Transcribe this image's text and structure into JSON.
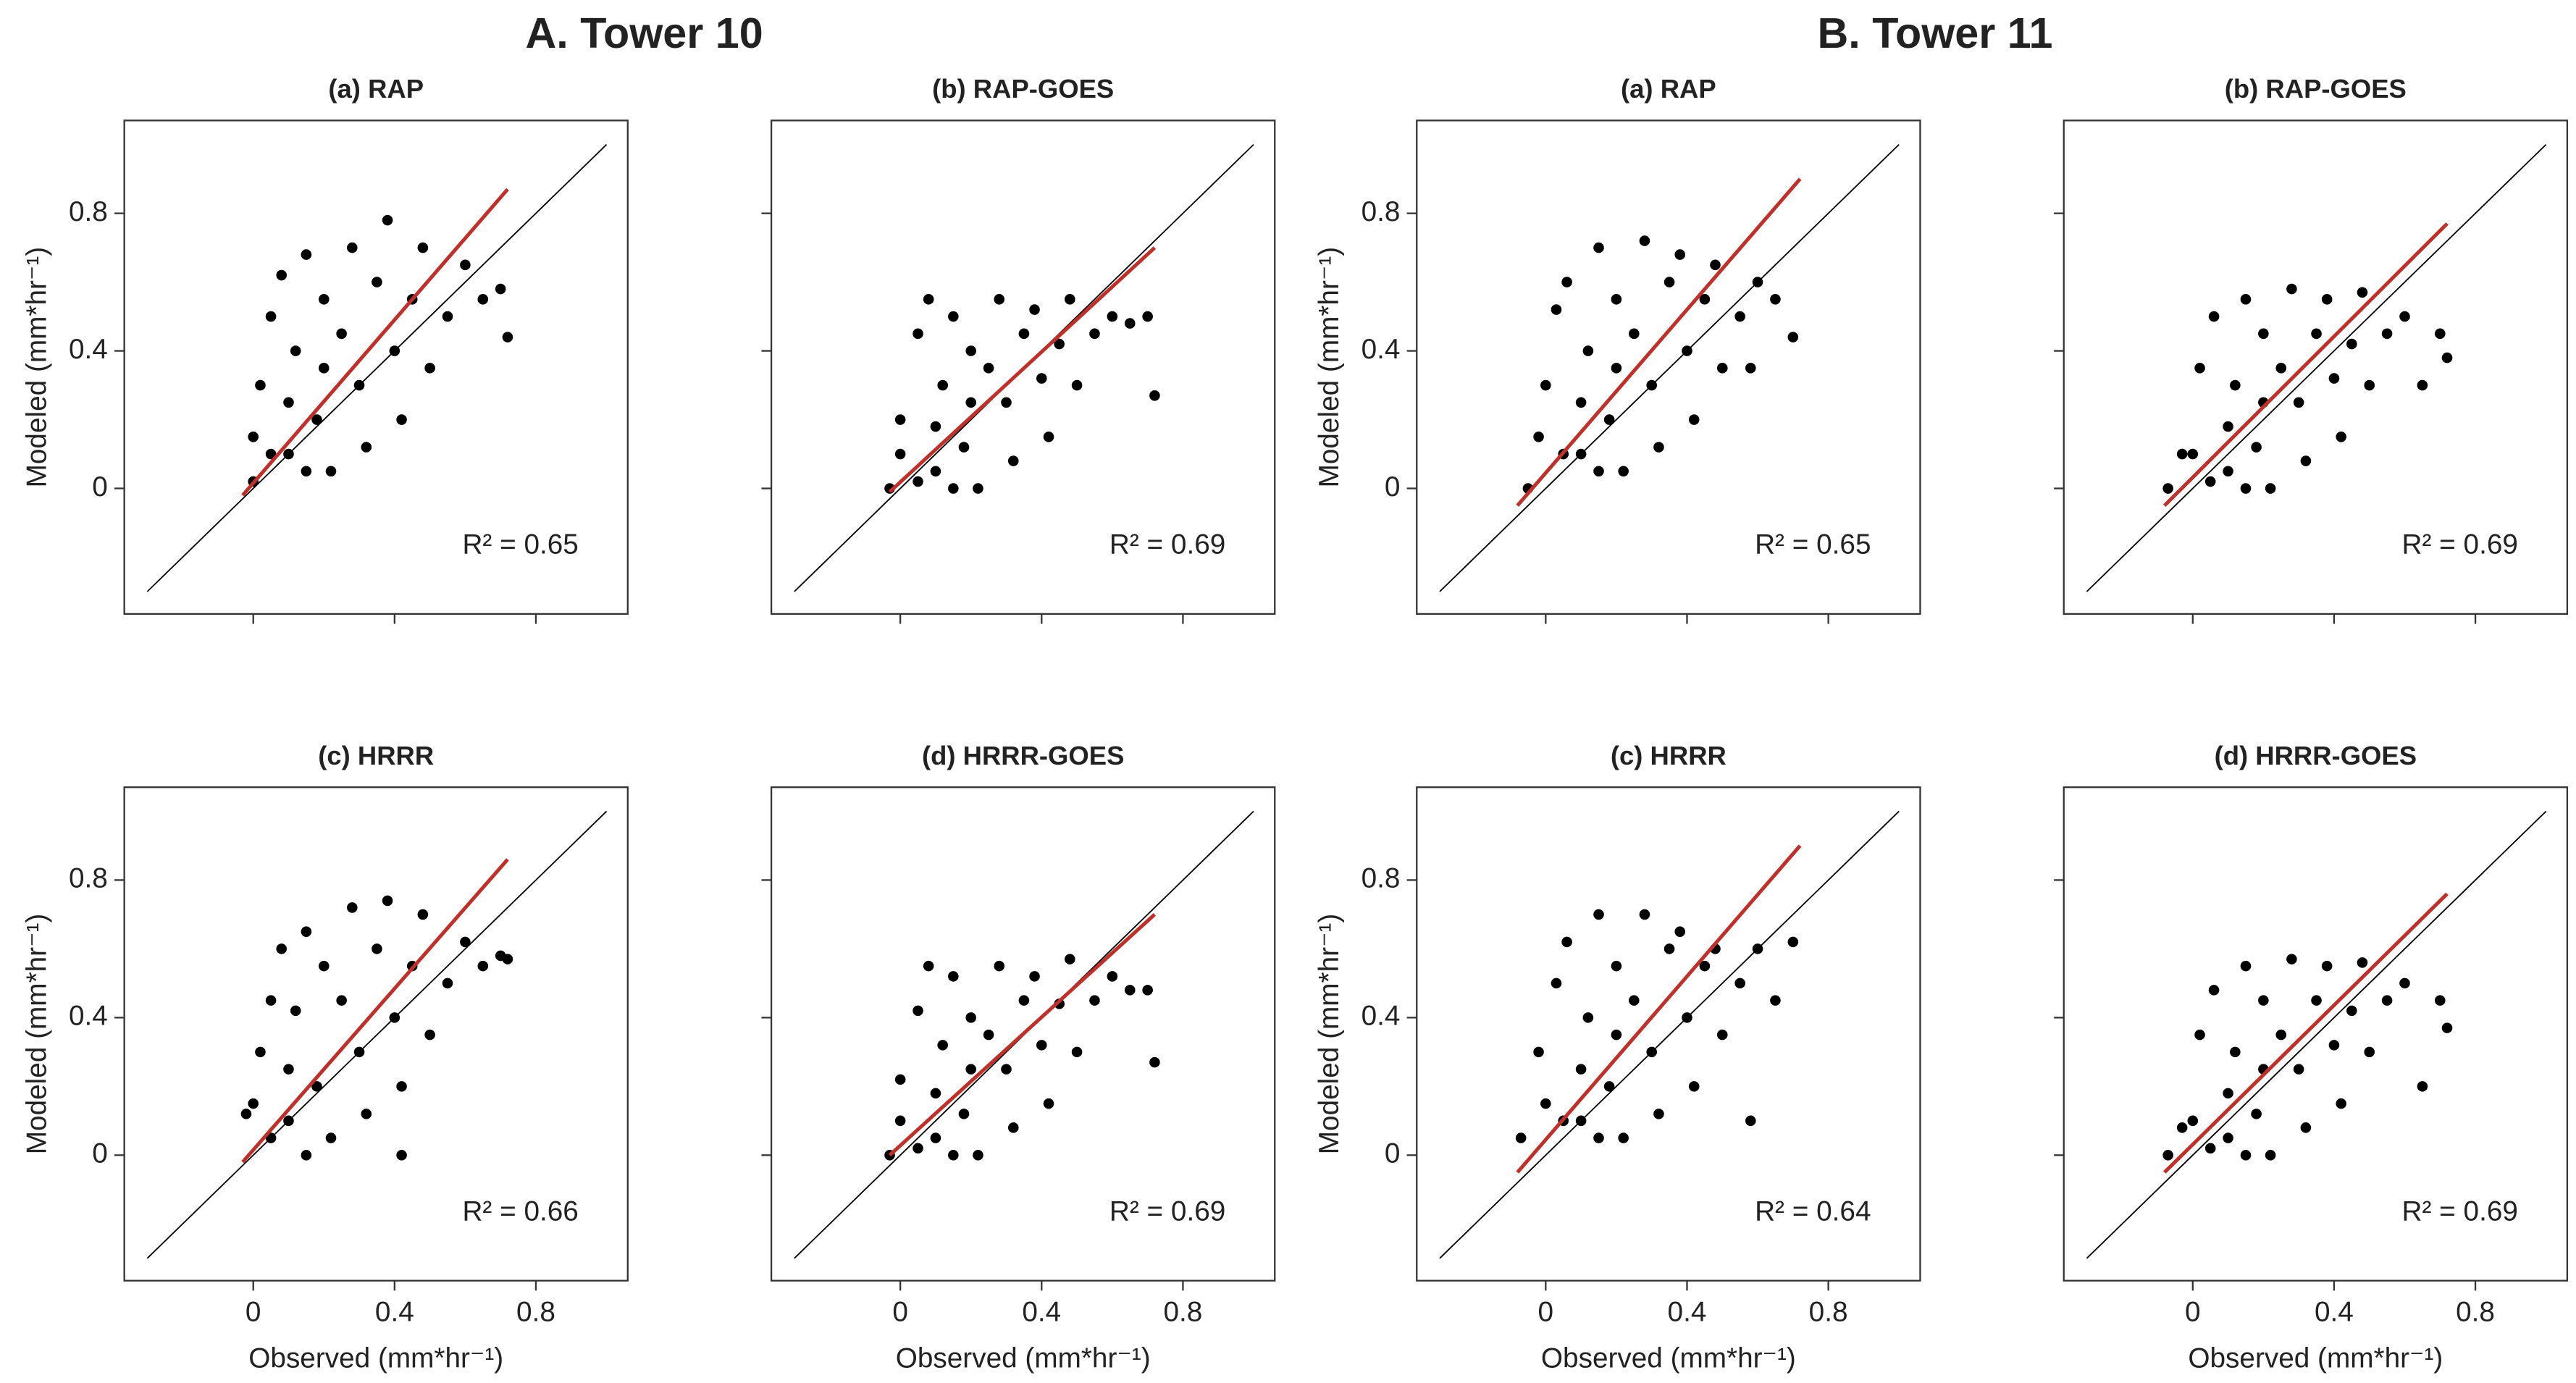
{
  "group_titles": [
    "A. Tower 10",
    "B. Tower 11"
  ],
  "chart_data": [
    {
      "type": "scatter",
      "title": "(a) RAP",
      "ylabel": "Modeled (mm*hr⁻¹)",
      "show_xtick_labels": false,
      "show_ytick_labels": true,
      "annotation": "R² = 0.65",
      "xlim": [
        -0.365,
        1.06
      ],
      "ylim": [
        -0.365,
        1.07
      ],
      "xticks": [
        0.0,
        0.4,
        0.8
      ],
      "yticks": [
        0.0,
        0.4,
        0.8
      ],
      "color": "#000000",
      "x": [
        0.0,
        0.02,
        0.05,
        0.08,
        0.1,
        0.12,
        0.15,
        0.18,
        0.2,
        0.22,
        0.25,
        0.28,
        0.3,
        0.32,
        0.35,
        0.38,
        0.4,
        0.42,
        0.45,
        0.48,
        0.5,
        0.55,
        0.6,
        0.65,
        0.7,
        0.0,
        0.05,
        0.1,
        0.15,
        0.2,
        0.72
      ],
      "y": [
        0.02,
        0.3,
        0.5,
        0.62,
        0.1,
        0.4,
        0.68,
        0.2,
        0.55,
        0.05,
        0.45,
        0.7,
        0.3,
        0.12,
        0.6,
        0.78,
        0.4,
        0.2,
        0.55,
        0.7,
        0.35,
        0.5,
        0.65,
        0.55,
        0.58,
        0.15,
        0.1,
        0.25,
        0.05,
        0.35,
        0.44
      ],
      "reference_line": {
        "x": [
          -0.3,
          1.0
        ],
        "y": [
          -0.3,
          1.0
        ],
        "color": "#000000"
      },
      "fit_line": {
        "x": [
          -0.03,
          0.72
        ],
        "y": [
          -0.02,
          0.87
        ],
        "color": "#c0302b"
      }
    },
    {
      "type": "scatter",
      "title": "(b) RAP-GOES",
      "show_xtick_labels": false,
      "show_ytick_labels": false,
      "annotation": "R² = 0.69",
      "xlim": [
        -0.365,
        1.06
      ],
      "ylim": [
        -0.365,
        1.07
      ],
      "xticks": [
        0.0,
        0.4,
        0.8
      ],
      "yticks": [
        0.0,
        0.4,
        0.8
      ],
      "color": "#000000",
      "x": [
        -0.03,
        0.0,
        0.05,
        0.08,
        0.1,
        0.12,
        0.15,
        0.18,
        0.2,
        0.22,
        0.25,
        0.28,
        0.3,
        0.32,
        0.35,
        0.38,
        0.4,
        0.42,
        0.45,
        0.48,
        0.5,
        0.55,
        0.6,
        0.65,
        0.7,
        0.0,
        0.05,
        0.1,
        0.15,
        0.2,
        0.72
      ],
      "y": [
        0.0,
        0.2,
        0.45,
        0.55,
        0.05,
        0.3,
        0.5,
        0.12,
        0.4,
        0.0,
        0.35,
        0.55,
        0.25,
        0.08,
        0.45,
        0.52,
        0.32,
        0.15,
        0.42,
        0.55,
        0.3,
        0.45,
        0.5,
        0.48,
        0.5,
        0.1,
        0.02,
        0.18,
        0.0,
        0.25,
        0.27
      ],
      "reference_line": {
        "x": [
          -0.3,
          1.0
        ],
        "y": [
          -0.3,
          1.0
        ],
        "color": "#000000"
      },
      "fit_line": {
        "x": [
          -0.03,
          0.72
        ],
        "y": [
          -0.01,
          0.7
        ],
        "color": "#c0302b"
      }
    },
    {
      "type": "scatter",
      "title": "(c) HRRR",
      "xlabel": "Observed (mm*hr⁻¹)",
      "ylabel": "Modeled (mm*hr⁻¹)",
      "show_xtick_labels": true,
      "show_ytick_labels": true,
      "annotation": "R² = 0.66",
      "xlim": [
        -0.365,
        1.06
      ],
      "ylim": [
        -0.365,
        1.07
      ],
      "xticks": [
        0.0,
        0.4,
        0.8
      ],
      "yticks": [
        0.0,
        0.4,
        0.8
      ],
      "color": "#000000",
      "x": [
        -0.02,
        0.02,
        0.05,
        0.08,
        0.1,
        0.12,
        0.15,
        0.18,
        0.2,
        0.22,
        0.25,
        0.28,
        0.3,
        0.32,
        0.35,
        0.38,
        0.4,
        0.42,
        0.45,
        0.48,
        0.5,
        0.55,
        0.6,
        0.65,
        0.7,
        0.0,
        0.05,
        0.1,
        0.15,
        0.42,
        0.72
      ],
      "y": [
        0.12,
        0.3,
        0.45,
        0.6,
        0.1,
        0.42,
        0.65,
        0.2,
        0.55,
        0.05,
        0.45,
        0.72,
        0.3,
        0.12,
        0.6,
        0.74,
        0.4,
        0.2,
        0.55,
        0.7,
        0.35,
        0.5,
        0.62,
        0.55,
        0.58,
        0.15,
        0.05,
        0.25,
        0.0,
        0.0,
        0.57
      ],
      "reference_line": {
        "x": [
          -0.3,
          1.0
        ],
        "y": [
          -0.3,
          1.0
        ],
        "color": "#000000"
      },
      "fit_line": {
        "x": [
          -0.03,
          0.72
        ],
        "y": [
          -0.02,
          0.86
        ],
        "color": "#c0302b"
      }
    },
    {
      "type": "scatter",
      "title": "(d) HRRR-GOES",
      "xlabel": "Observed (mm*hr⁻¹)",
      "show_xtick_labels": true,
      "show_ytick_labels": false,
      "annotation": "R² = 0.69",
      "xlim": [
        -0.365,
        1.06
      ],
      "ylim": [
        -0.365,
        1.07
      ],
      "xticks": [
        0.0,
        0.4,
        0.8
      ],
      "yticks": [
        0.0,
        0.4,
        0.8
      ],
      "color": "#000000",
      "x": [
        -0.03,
        0.0,
        0.05,
        0.08,
        0.1,
        0.12,
        0.15,
        0.18,
        0.2,
        0.22,
        0.25,
        0.28,
        0.3,
        0.32,
        0.35,
        0.38,
        0.4,
        0.42,
        0.45,
        0.48,
        0.5,
        0.55,
        0.6,
        0.65,
        0.7,
        0.0,
        0.05,
        0.1,
        0.15,
        0.2,
        0.72
      ],
      "y": [
        0.0,
        0.22,
        0.42,
        0.55,
        0.05,
        0.32,
        0.52,
        0.12,
        0.4,
        0.0,
        0.35,
        0.55,
        0.25,
        0.08,
        0.45,
        0.52,
        0.32,
        0.15,
        0.44,
        0.57,
        0.3,
        0.45,
        0.52,
        0.48,
        0.48,
        0.1,
        0.02,
        0.18,
        0.0,
        0.25,
        0.27
      ],
      "reference_line": {
        "x": [
          -0.3,
          1.0
        ],
        "y": [
          -0.3,
          1.0
        ],
        "color": "#000000"
      },
      "fit_line": {
        "x": [
          -0.03,
          0.72
        ],
        "y": [
          0.0,
          0.7
        ],
        "color": "#c0302b"
      }
    },
    {
      "type": "scatter",
      "title": "(a) RAP",
      "ylabel": "Modeled (mm*hr⁻¹)",
      "show_xtick_labels": false,
      "show_ytick_labels": true,
      "annotation": "R² = 0.65",
      "xlim": [
        -0.365,
        1.06
      ],
      "ylim": [
        -0.365,
        1.07
      ],
      "xticks": [
        0.0,
        0.4,
        0.8
      ],
      "yticks": [
        0.0,
        0.4,
        0.8
      ],
      "color": "#000000",
      "x": [
        -0.05,
        0.0,
        0.03,
        0.06,
        0.1,
        0.12,
        0.15,
        0.18,
        0.2,
        0.22,
        0.25,
        0.28,
        0.3,
        0.32,
        0.35,
        0.38,
        0.4,
        0.42,
        0.45,
        0.48,
        0.5,
        0.55,
        0.6,
        0.65,
        0.7,
        -0.02,
        0.05,
        0.1,
        0.15,
        0.2,
        0.58
      ],
      "y": [
        0.0,
        0.3,
        0.52,
        0.6,
        0.1,
        0.4,
        0.7,
        0.2,
        0.55,
        0.05,
        0.45,
        0.72,
        0.3,
        0.12,
        0.6,
        0.68,
        0.4,
        0.2,
        0.55,
        0.65,
        0.35,
        0.5,
        0.6,
        0.55,
        0.44,
        0.15,
        0.1,
        0.25,
        0.05,
        0.35,
        0.35
      ],
      "reference_line": {
        "x": [
          -0.3,
          1.0
        ],
        "y": [
          -0.3,
          1.0
        ],
        "color": "#000000"
      },
      "fit_line": {
        "x": [
          -0.08,
          0.72
        ],
        "y": [
          -0.05,
          0.9
        ],
        "color": "#c0302b"
      }
    },
    {
      "type": "scatter",
      "title": "(b) RAP-GOES",
      "show_xtick_labels": false,
      "show_ytick_labels": false,
      "annotation": "R² = 0.69",
      "xlim": [
        -0.365,
        1.06
      ],
      "ylim": [
        -0.365,
        1.07
      ],
      "xticks": [
        0.0,
        0.4,
        0.8
      ],
      "yticks": [
        0.0,
        0.4,
        0.8
      ],
      "color": "#000000",
      "x": [
        -0.07,
        -0.03,
        0.02,
        0.06,
        0.1,
        0.12,
        0.15,
        0.18,
        0.2,
        0.22,
        0.25,
        0.28,
        0.3,
        0.32,
        0.35,
        0.38,
        0.4,
        0.42,
        0.45,
        0.48,
        0.5,
        0.55,
        0.6,
        0.65,
        0.7,
        0.0,
        0.05,
        0.1,
        0.15,
        0.2,
        0.72
      ],
      "y": [
        0.0,
        0.1,
        0.35,
        0.5,
        0.05,
        0.3,
        0.55,
        0.12,
        0.45,
        0.0,
        0.35,
        0.58,
        0.25,
        0.08,
        0.45,
        0.55,
        0.32,
        0.15,
        0.42,
        0.57,
        0.3,
        0.45,
        0.5,
        0.3,
        0.45,
        0.1,
        0.02,
        0.18,
        0.0,
        0.25,
        0.38
      ],
      "reference_line": {
        "x": [
          -0.3,
          1.0
        ],
        "y": [
          -0.3,
          1.0
        ],
        "color": "#000000"
      },
      "fit_line": {
        "x": [
          -0.08,
          0.72
        ],
        "y": [
          -0.05,
          0.77
        ],
        "color": "#c0302b"
      }
    },
    {
      "type": "scatter",
      "title": "(c) HRRR",
      "xlabel": "Observed (mm*hr⁻¹)",
      "ylabel": "Modeled (mm*hr⁻¹)",
      "show_xtick_labels": true,
      "show_ytick_labels": true,
      "annotation": "R² = 0.64",
      "xlim": [
        -0.365,
        1.06
      ],
      "ylim": [
        -0.365,
        1.07
      ],
      "xticks": [
        0.0,
        0.4,
        0.8
      ],
      "yticks": [
        0.0,
        0.4,
        0.8
      ],
      "color": "#000000",
      "x": [
        -0.07,
        -0.02,
        0.03,
        0.06,
        0.1,
        0.12,
        0.15,
        0.18,
        0.2,
        0.22,
        0.25,
        0.28,
        0.3,
        0.32,
        0.35,
        0.38,
        0.4,
        0.42,
        0.45,
        0.48,
        0.5,
        0.55,
        0.6,
        0.65,
        0.7,
        0.0,
        0.05,
        0.1,
        0.15,
        0.2,
        0.58
      ],
      "y": [
        0.05,
        0.3,
        0.5,
        0.62,
        0.1,
        0.4,
        0.7,
        0.2,
        0.55,
        0.05,
        0.45,
        0.7,
        0.3,
        0.12,
        0.6,
        0.65,
        0.4,
        0.2,
        0.55,
        0.6,
        0.35,
        0.5,
        0.6,
        0.45,
        0.62,
        0.15,
        0.1,
        0.25,
        0.05,
        0.35,
        0.1
      ],
      "reference_line": {
        "x": [
          -0.3,
          1.0
        ],
        "y": [
          -0.3,
          1.0
        ],
        "color": "#000000"
      },
      "fit_line": {
        "x": [
          -0.08,
          0.72
        ],
        "y": [
          -0.05,
          0.9
        ],
        "color": "#c0302b"
      }
    },
    {
      "type": "scatter",
      "title": "(d) HRRR-GOES",
      "xlabel": "Observed (mm*hr⁻¹)",
      "show_xtick_labels": true,
      "show_ytick_labels": false,
      "annotation": "R² = 0.69",
      "xlim": [
        -0.365,
        1.06
      ],
      "ylim": [
        -0.365,
        1.07
      ],
      "xticks": [
        0.0,
        0.4,
        0.8
      ],
      "yticks": [
        0.0,
        0.4,
        0.8
      ],
      "color": "#000000",
      "x": [
        -0.07,
        -0.03,
        0.02,
        0.06,
        0.1,
        0.12,
        0.15,
        0.18,
        0.2,
        0.22,
        0.25,
        0.28,
        0.3,
        0.32,
        0.35,
        0.38,
        0.4,
        0.42,
        0.45,
        0.48,
        0.5,
        0.55,
        0.6,
        0.65,
        0.7,
        0.0,
        0.05,
        0.1,
        0.15,
        0.2,
        0.72
      ],
      "y": [
        0.0,
        0.08,
        0.35,
        0.48,
        0.05,
        0.3,
        0.55,
        0.12,
        0.45,
        0.0,
        0.35,
        0.57,
        0.25,
        0.08,
        0.45,
        0.55,
        0.32,
        0.15,
        0.42,
        0.56,
        0.3,
        0.45,
        0.5,
        0.2,
        0.45,
        0.1,
        0.02,
        0.18,
        0.0,
        0.25,
        0.37
      ],
      "reference_line": {
        "x": [
          -0.3,
          1.0
        ],
        "y": [
          -0.3,
          1.0
        ],
        "color": "#000000"
      },
      "fit_line": {
        "x": [
          -0.08,
          0.72
        ],
        "y": [
          -0.05,
          0.76
        ],
        "color": "#c0302b"
      }
    }
  ]
}
